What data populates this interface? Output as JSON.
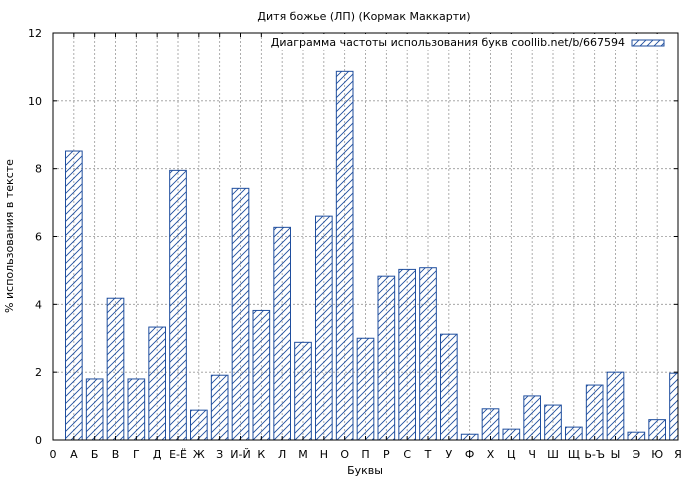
{
  "chart_data": {
    "type": "bar",
    "title": "Дитя божье (ЛП) (Кормак Маккарти)",
    "xlabel": "Буквы",
    "ylabel": "% использования в тексте",
    "legend": {
      "label": "Диаграмма частоты использования букв coollib.net/b/667594",
      "position": "top-right"
    },
    "ylim": [
      0,
      12
    ],
    "yticks": [
      "0",
      "2",
      "4",
      "6",
      "8",
      "10",
      "12"
    ],
    "x_ticks": [
      "0",
      "А",
      "Б",
      "В",
      "Г",
      "Д",
      "Е-Ё",
      "Ж",
      "З",
      "И-Й",
      "К",
      "Л",
      "М",
      "Н",
      "О",
      "П",
      "Р",
      "С",
      "Т",
      "У",
      "Ф",
      "Х",
      "Ц",
      "Ч",
      "Ш",
      "Щ",
      "Ь-Ъ",
      "Ы",
      "Э",
      "Ю",
      "Я"
    ],
    "categories": [
      "А",
      "Б",
      "В",
      "Г",
      "Д",
      "Е-Ё",
      "Ж",
      "З",
      "И-Й",
      "К",
      "Л",
      "М",
      "Н",
      "О",
      "П",
      "Р",
      "С",
      "Т",
      "У",
      "Ф",
      "Х",
      "Ц",
      "Ч",
      "Ш",
      "Щ",
      "Ь-Ъ",
      "Ы",
      "Э",
      "Ю",
      "Я"
    ],
    "values": [
      8.52,
      1.8,
      4.18,
      1.8,
      3.33,
      7.95,
      0.88,
      1.91,
      7.42,
      3.82,
      6.27,
      2.88,
      6.6,
      10.87,
      3.0,
      4.83,
      5.03,
      5.08,
      3.12,
      0.17,
      0.92,
      0.32,
      1.3,
      1.03,
      0.38,
      1.62,
      2.0,
      0.23,
      0.6,
      1.97
    ],
    "grid": true,
    "colors": {
      "bar_edge": "#1f4e9e",
      "hatch": "#1f4e9e",
      "grid": "#999999",
      "axis": "#000000"
    }
  }
}
